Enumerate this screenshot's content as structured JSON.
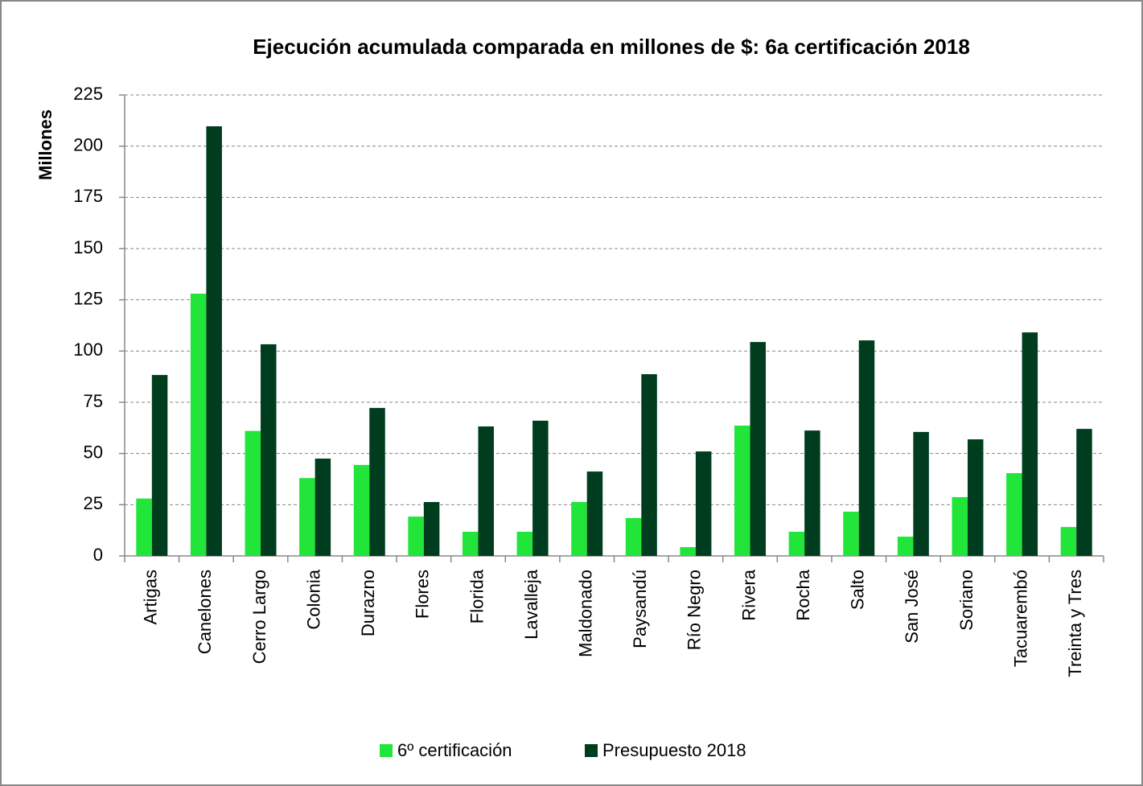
{
  "chart_data": {
    "type": "bar",
    "title": "Ejecución acumulada comparada en millones de $: 6a certificación 2018",
    "y_label": "Millones",
    "categories": [
      "Artigas",
      "Canelones",
      "Cerro Largo",
      "Colonia",
      "Durazno",
      "Flores",
      "Florida",
      "Lavalleja",
      "Maldonado",
      "Paysandú",
      "Río Negro",
      "Rivera",
      "Rocha",
      "Salto",
      "San José",
      "Soriano",
      "Tacuarembó",
      "Treinta y Tres"
    ],
    "series": [
      {
        "name": "6º certificación",
        "color": "#22e53a",
        "values": [
          28,
          128,
          61,
          38,
          44.4,
          19.2,
          11.8,
          11.8,
          26.3,
          18.5,
          4.3,
          63.6,
          11.8,
          21.6,
          9.4,
          28.7,
          40.4,
          14.1
        ]
      },
      {
        "name": "Presupuesto 2018",
        "color": "#003d1f",
        "values": [
          88.3,
          209.7,
          103.3,
          47.5,
          72.2,
          26.3,
          63.2,
          66,
          41.2,
          88.7,
          51,
          104.4,
          61.2,
          105.2,
          60.5,
          56.9,
          109.1,
          62
        ]
      }
    ],
    "ylim": [
      0,
      225
    ],
    "yticks": [
      0,
      25,
      50,
      75,
      100,
      125,
      150,
      175,
      200,
      225
    ],
    "grid": true,
    "legend": "bottom"
  }
}
